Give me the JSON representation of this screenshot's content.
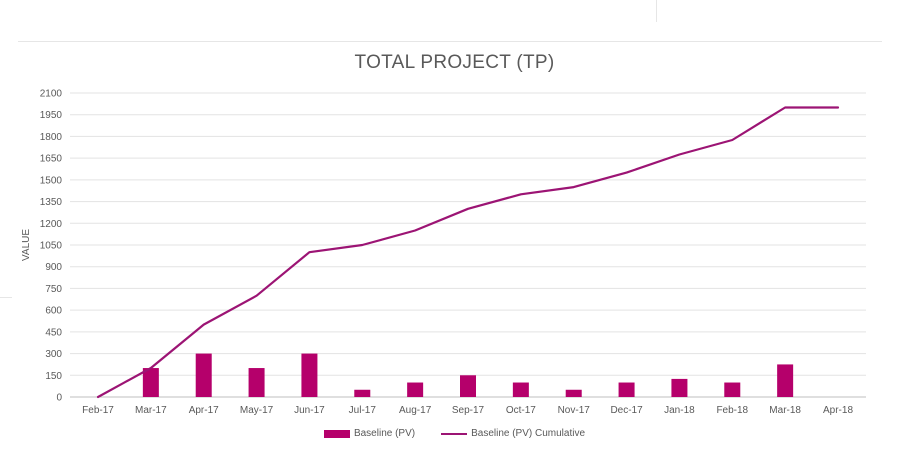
{
  "chart_data": {
    "type": "bar",
    "title": "TOTAL PROJECT (TP)",
    "xlabel": "",
    "ylabel": "VALUE",
    "ylim": [
      0,
      2100
    ],
    "yticks": [
      0,
      150,
      300,
      450,
      600,
      750,
      900,
      1050,
      1200,
      1350,
      1500,
      1650,
      1800,
      1950,
      2100
    ],
    "categories": [
      "Feb-17",
      "Mar-17",
      "Apr-17",
      "May-17",
      "Jun-17",
      "Jul-17",
      "Aug-17",
      "Sep-17",
      "Oct-17",
      "Nov-17",
      "Dec-17",
      "Jan-18",
      "Feb-18",
      "Mar-18",
      "Apr-18"
    ],
    "grid": true,
    "legend_position": "bottom",
    "series": [
      {
        "name": "Baseline (PV)",
        "type": "bar",
        "color": "#b5006b",
        "values": [
          0,
          200,
          300,
          200,
          300,
          50,
          100,
          150,
          100,
          50,
          100,
          125,
          100,
          225,
          0
        ]
      },
      {
        "name": "Baseline (PV) Cumulative",
        "type": "line",
        "color": "#9c1474",
        "values": [
          0,
          200,
          500,
          700,
          1000,
          1050,
          1150,
          1300,
          1400,
          1450,
          1550,
          1675,
          1775,
          2000,
          2000
        ]
      }
    ]
  }
}
